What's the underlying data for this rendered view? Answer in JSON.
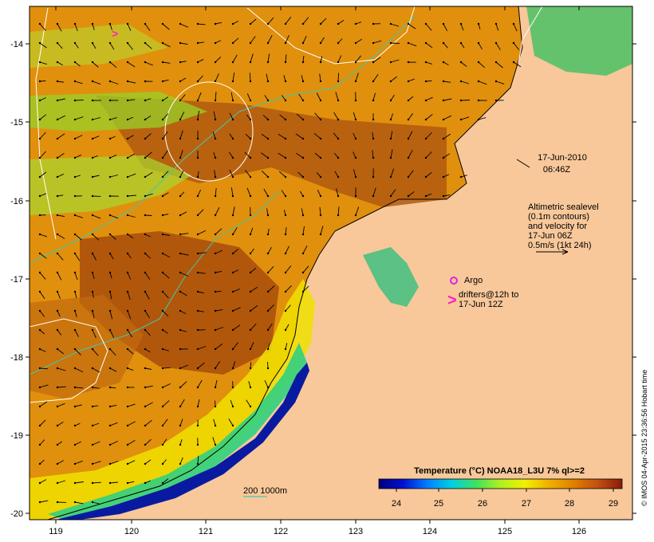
{
  "annotations": {
    "date": "17-Jun-2010",
    "time": "06:46Z",
    "sealevel_lines": [
      "Altimetric sealevel",
      "(0.1m contours)",
      "and velocity for",
      "17-Jun 06Z",
      "0.5m/s (1kt 24h)"
    ],
    "argo_label": "Argo",
    "drifters_lines": [
      "drifters@12h to",
      "17-Jun 12Z"
    ],
    "drifter_symbol": ">",
    "isobath_label": "200  1000m"
  },
  "colorbar": {
    "title": "Temperature (°C) NOAA18_L3U 7% ql>=2",
    "ticks": [
      "24",
      "25",
      "26",
      "27",
      "28",
      "29"
    ]
  },
  "axes": {
    "lon_ticks": [
      "119",
      "120",
      "121",
      "122",
      "123",
      "124",
      "125",
      "126"
    ],
    "lat_ticks": [
      "-14",
      "-15",
      "-16",
      "-17",
      "-18",
      "-19",
      "-20"
    ]
  },
  "credit": "© IMOS 04-Apr-2015 23:36:56 Hobart time",
  "colors": {
    "land": "#f8c89a",
    "sea_warm": "#b45a0c",
    "sea_mid": "#e08a08",
    "isobath": "#40c8b0",
    "contour": "#ffffff",
    "argo": "#e020e0",
    "drifter": "#ff20c0"
  }
}
